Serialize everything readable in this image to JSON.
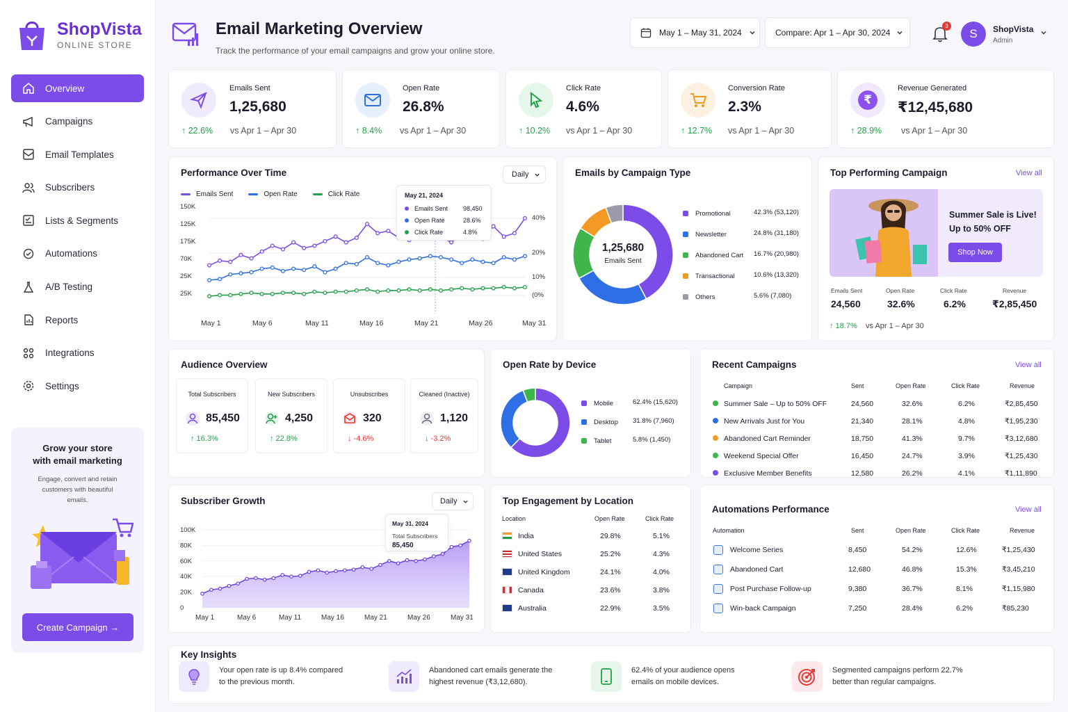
{
  "brand": {
    "name": "ShopVista",
    "tagline": "ONLINE STORE"
  },
  "nav": [
    {
      "label": "Overview",
      "icon": "home-icon",
      "active": true
    },
    {
      "label": "Campaigns",
      "icon": "megaphone-icon"
    },
    {
      "label": "Email Templates",
      "icon": "template-icon"
    },
    {
      "label": "Subscribers",
      "icon": "users-icon"
    },
    {
      "label": "Lists & Segments",
      "icon": "list-icon"
    },
    {
      "label": "Automations",
      "icon": "automation-icon"
    },
    {
      "label": "A/B Testing",
      "icon": "flask-icon"
    },
    {
      "label": "Reports",
      "icon": "report-icon"
    },
    {
      "label": "Integrations",
      "icon": "integrations-icon"
    },
    {
      "label": "Settings",
      "icon": "gear-icon"
    }
  ],
  "promo": {
    "title_line1": "Grow your store",
    "title_line2": "with email marketing",
    "desc_line1": "Engage, convert and retain",
    "desc_line2": "customers with beautiful",
    "desc_line3": "emails.",
    "button": "Create Campaign →"
  },
  "header": {
    "title": "Email Marketing Overview",
    "subtitle": "Track the performance of your email campaigns and grow your online store.",
    "date_range": "May 1 – May 31, 2024",
    "compare": "Compare: Apr 1 – Apr 30, 2024",
    "notifications": "3",
    "user_initial": "S",
    "user_name": "ShopVista",
    "user_role": "Admin"
  },
  "kpis": [
    {
      "label": "Emails Sent",
      "value": "1,25,680",
      "delta": "↑ 22.6%",
      "vs": "vs Apr 1 – Apr 30",
      "icon": "send-icon",
      "color": "#7c4ce8",
      "bg": "#efeafd"
    },
    {
      "label": "Open Rate",
      "value": "26.8%",
      "delta": "↑ 8.4%",
      "vs": "vs Apr 1 – Apr 30",
      "icon": "envelope-icon",
      "color": "#2f6fe6",
      "bg": "#e6effd"
    },
    {
      "label": "Click Rate",
      "value": "4.6%",
      "delta": "↑ 10.2%",
      "vs": "vs Apr 1 – Apr 30",
      "icon": "cursor-icon",
      "color": "#23a04a",
      "bg": "#e6f6ea"
    },
    {
      "label": "Conversion Rate",
      "value": "2.3%",
      "delta": "↑ 12.7%",
      "vs": "vs Apr 1 – Apr 30",
      "icon": "cart-icon",
      "color": "#f29a1e",
      "bg": "#fdf2e2"
    },
    {
      "label": "Revenue Generated",
      "value": "₹12,45,680",
      "delta": "↑ 28.9%",
      "vs": "vs Apr 1 – Apr 30",
      "icon": "rupee-icon",
      "color": "#8e52ec",
      "bg": "#f0e9fd"
    }
  ],
  "performance": {
    "title": "Performance Over Time",
    "period": "Daily",
    "legend": [
      "Emails Sent",
      "Open Rate",
      "Click Rate"
    ],
    "y_left": [
      "150K",
      "125K",
      "175K",
      "70K",
      "25K",
      "25K"
    ],
    "y_right": [
      "40%",
      "20%",
      "10%",
      "(0%"
    ],
    "x_labels": [
      "May 1",
      "May 6",
      "May 11",
      "May 16",
      "May 21",
      "May 26",
      "May 31"
    ],
    "tooltip": {
      "date": "May 21, 2024",
      "rows": [
        {
          "label": "Emails Sent",
          "value": "98,450"
        },
        {
          "label": "Open Rate",
          "value": "28.6%"
        },
        {
          "label": "Click Rate",
          "value": "4.8%"
        }
      ]
    }
  },
  "chart_data": [
    {
      "type": "line",
      "title": "Performance Over Time",
      "x": [
        "May 1",
        "May 2",
        "May 3",
        "May 4",
        "May 5",
        "May 6",
        "May 7",
        "May 8",
        "May 9",
        "May 10",
        "May 11",
        "May 12",
        "May 13",
        "May 14",
        "May 15",
        "May 16",
        "May 17",
        "May 18",
        "May 19",
        "May 20",
        "May 21",
        "May 22",
        "May 23",
        "May 24",
        "May 25",
        "May 26",
        "May 27",
        "May 28",
        "May 29",
        "May 30",
        "May 31"
      ],
      "series": [
        {
          "name": "Emails Sent",
          "color": "#7c4ce8",
          "values": [
            0.33,
            0.37,
            0.36,
            0.42,
            0.39,
            0.45,
            0.5,
            0.47,
            0.53,
            0.48,
            0.5,
            0.54,
            0.58,
            0.53,
            0.57,
            0.69,
            0.61,
            0.63,
            0.57,
            0.55,
            0.62,
            0.66,
            0.58,
            0.53,
            0.6,
            0.61,
            0.56,
            0.67,
            0.58,
            0.61,
            0.74
          ]
        },
        {
          "name": "Open Rate",
          "color": "#2f6fe6",
          "values": [
            0.2,
            0.21,
            0.25,
            0.26,
            0.27,
            0.3,
            0.31,
            0.28,
            0.3,
            0.29,
            0.32,
            0.27,
            0.3,
            0.35,
            0.34,
            0.4,
            0.35,
            0.33,
            0.36,
            0.38,
            0.39,
            0.41,
            0.4,
            0.38,
            0.35,
            0.38,
            0.36,
            0.35,
            0.4,
            0.38,
            0.41
          ]
        },
        {
          "name": "Click Rate",
          "color": "#23a04a",
          "values": [
            0.06,
            0.07,
            0.07,
            0.08,
            0.09,
            0.08,
            0.08,
            0.09,
            0.09,
            0.08,
            0.1,
            0.09,
            0.1,
            0.1,
            0.11,
            0.12,
            0.1,
            0.11,
            0.11,
            0.12,
            0.11,
            0.12,
            0.11,
            0.12,
            0.13,
            0.12,
            0.13,
            0.13,
            0.14,
            0.13,
            0.14
          ]
        }
      ]
    },
    {
      "type": "pie",
      "title": "Emails by Campaign Type",
      "center_value": "1,25,680",
      "center_label": "Emails Sent",
      "slices": [
        {
          "label": "Promotional",
          "pct": 42.3,
          "text": "42.3% (53,120)",
          "color": "#7c4ce8"
        },
        {
          "label": "Newsletter",
          "pct": 24.8,
          "text": "24.8% (31,180)",
          "color": "#2f6fe6"
        },
        {
          "label": "Abandoned Cart",
          "pct": 16.7,
          "text": "16.7% (20,980)",
          "color": "#3fb64c"
        },
        {
          "label": "Transactional",
          "pct": 10.6,
          "text": "10.6% (13,320)",
          "color": "#f39a24"
        },
        {
          "label": "Others",
          "pct": 5.6,
          "text": "5.6% (7,080)",
          "color": "#9a9aa8"
        }
      ]
    },
    {
      "type": "pie",
      "title": "Open Rate by Device",
      "slices": [
        {
          "label": "Mobile",
          "pct": 62.4,
          "text": "62.4% (15,620)",
          "color": "#7c4ce8"
        },
        {
          "label": "Desktop",
          "pct": 31.8,
          "text": "31.8% (7,960)",
          "color": "#2f6fe6"
        },
        {
          "label": "Tablet",
          "pct": 5.8,
          "text": "5.8% (1,450)",
          "color": "#3fb64c"
        }
      ]
    },
    {
      "type": "area",
      "title": "Subscriber Growth",
      "period": "Daily",
      "y_ticks": [
        "100K",
        "80K",
        "60K",
        "40K",
        "20K",
        "0"
      ],
      "ylim": [
        0,
        100000
      ],
      "x_labels": [
        "May 1",
        "May 6",
        "May 11",
        "May 16",
        "May 21",
        "May 26",
        "May 31"
      ],
      "values": [
        18000,
        23000,
        24500,
        28000,
        31000,
        37000,
        38000,
        36000,
        38000,
        42000,
        40000,
        41000,
        46000,
        48000,
        45000,
        47000,
        48000,
        49000,
        52000,
        50000,
        55000,
        60000,
        57000,
        61000,
        60000,
        62000,
        66000,
        69000,
        78000,
        80000,
        86000
      ],
      "tooltip": {
        "date": "May 31, 2024",
        "label": "Total Subscribers",
        "value": "85,450"
      }
    }
  ],
  "top_campaign": {
    "title": "Top Performing Campaign",
    "view_all": "View all",
    "banner_line1": "Summer Sale is Live!",
    "banner_line2": "Up to 50% OFF",
    "button": "Shop Now",
    "stats": [
      {
        "label": "Emails Sent",
        "value": "24,560"
      },
      {
        "label": "Open Rate",
        "value": "32.6%"
      },
      {
        "label": "Click Rate",
        "value": "6.2%"
      },
      {
        "label": "Revenue",
        "value": "₹2,85,450"
      }
    ],
    "delta": "↑ 18.7%",
    "vs": "vs Apr 1 – Apr 30"
  },
  "audience": {
    "title": "Audience Overview",
    "items": [
      {
        "label": "Total Subscribers",
        "value": "85,450",
        "delta": "↑ 16.3%",
        "up": true,
        "color": "#7c4ce8"
      },
      {
        "label": "New Subscribers",
        "value": "4,250",
        "delta": "↑ 22.8%",
        "up": true,
        "color": "#23a04a"
      },
      {
        "label": "Unsubscribes",
        "value": "320",
        "delta": "↓ -4.6%",
        "up": false,
        "color": "#e53935"
      },
      {
        "label": "Cleaned (Inactive)",
        "value": "1,120",
        "delta": "↓ -3.2%",
        "up": false,
        "color": "#6b6b80"
      }
    ]
  },
  "recent": {
    "title": "Recent Campaigns",
    "view_all": "View all",
    "headers": [
      "Campaign",
      "Sent",
      "Open Rate",
      "Click Rate",
      "Revenue"
    ],
    "rows": [
      {
        "name": "Summer Sale – Up to 50% OFF",
        "sent": "24,560",
        "open": "32.6%",
        "click": "6.2%",
        "rev": "₹2,85,450",
        "color": "#3fb64c"
      },
      {
        "name": "New Arrivals Just for You",
        "sent": "21,340",
        "open": "28.1%",
        "click": "4.8%",
        "rev": "₹1,95,230",
        "color": "#2f6fe6"
      },
      {
        "name": "Abandoned Cart Reminder",
        "sent": "18,750",
        "open": "41.3%",
        "click": "9.7%",
        "rev": "₹3,12,680",
        "color": "#f39a24"
      },
      {
        "name": "Weekend Special Offer",
        "sent": "16,450",
        "open": "24.7%",
        "click": "3.9%",
        "rev": "₹1,25,430",
        "color": "#3fb64c"
      },
      {
        "name": "Exclusive Member Benefits",
        "sent": "12,580",
        "open": "26.2%",
        "click": "4.1%",
        "rev": "₹1,11,890",
        "color": "#7c4ce8"
      }
    ]
  },
  "location": {
    "title": "Top Engagement by Location",
    "headers": [
      "Location",
      "Open Rate",
      "Click Rate"
    ],
    "rows": [
      {
        "name": "India",
        "open": "29.8%",
        "click": "5.1%",
        "flag": "india-flag-icon"
      },
      {
        "name": "United States",
        "open": "25.2%",
        "click": "4.3%",
        "flag": "us-flag-icon"
      },
      {
        "name": "United Kingdom",
        "open": "24.1%",
        "click": "4.0%",
        "flag": "uk-flag-icon"
      },
      {
        "name": "Canada",
        "open": "23.6%",
        "click": "3.8%",
        "flag": "canada-flag-icon"
      },
      {
        "name": "Australia",
        "open": "22.9%",
        "click": "3.5%",
        "flag": "australia-flag-icon"
      }
    ]
  },
  "automations": {
    "title": "Automations Performance",
    "view_all": "View all",
    "headers": [
      "Automation",
      "Sent",
      "Open Rate",
      "Click Rate",
      "Revenue"
    ],
    "rows": [
      {
        "name": "Welcome Series",
        "sent": "8,450",
        "open": "54.2%",
        "click": "12.6%",
        "rev": "₹1,25,430"
      },
      {
        "name": "Abandoned Cart",
        "sent": "12,680",
        "open": "46.8%",
        "click": "15.3%",
        "rev": "₹3,45,210"
      },
      {
        "name": "Post Purchase Follow-up",
        "sent": "9,380",
        "open": "36.7%",
        "click": "8.1%",
        "rev": "₹1,15,980"
      },
      {
        "name": "Win-back Campaign",
        "sent": "7,250",
        "open": "28.4%",
        "click": "6.2%",
        "rev": "₹85,230"
      }
    ]
  },
  "insights": {
    "title": "Key Insights",
    "items": [
      {
        "l1": "Your open rate is up 8.4% compared",
        "l2": "to the previous month.",
        "icon": "lightbulb-icon",
        "bg": "#efeafd"
      },
      {
        "l1": "Abandoned cart emails generate the",
        "l2": "highest revenue (₹3,12,680).",
        "icon": "growth-chart-icon",
        "bg": "#efeafd"
      },
      {
        "l1": "62.4% of your audience opens",
        "l2": "emails on mobile devices.",
        "icon": "mobile-icon",
        "bg": "#e6f6ea"
      },
      {
        "l1": "Segmented campaigns perform 22.7%",
        "l2": "better than regular campaigns.",
        "icon": "target-icon",
        "bg": "#fde9ec"
      }
    ]
  }
}
